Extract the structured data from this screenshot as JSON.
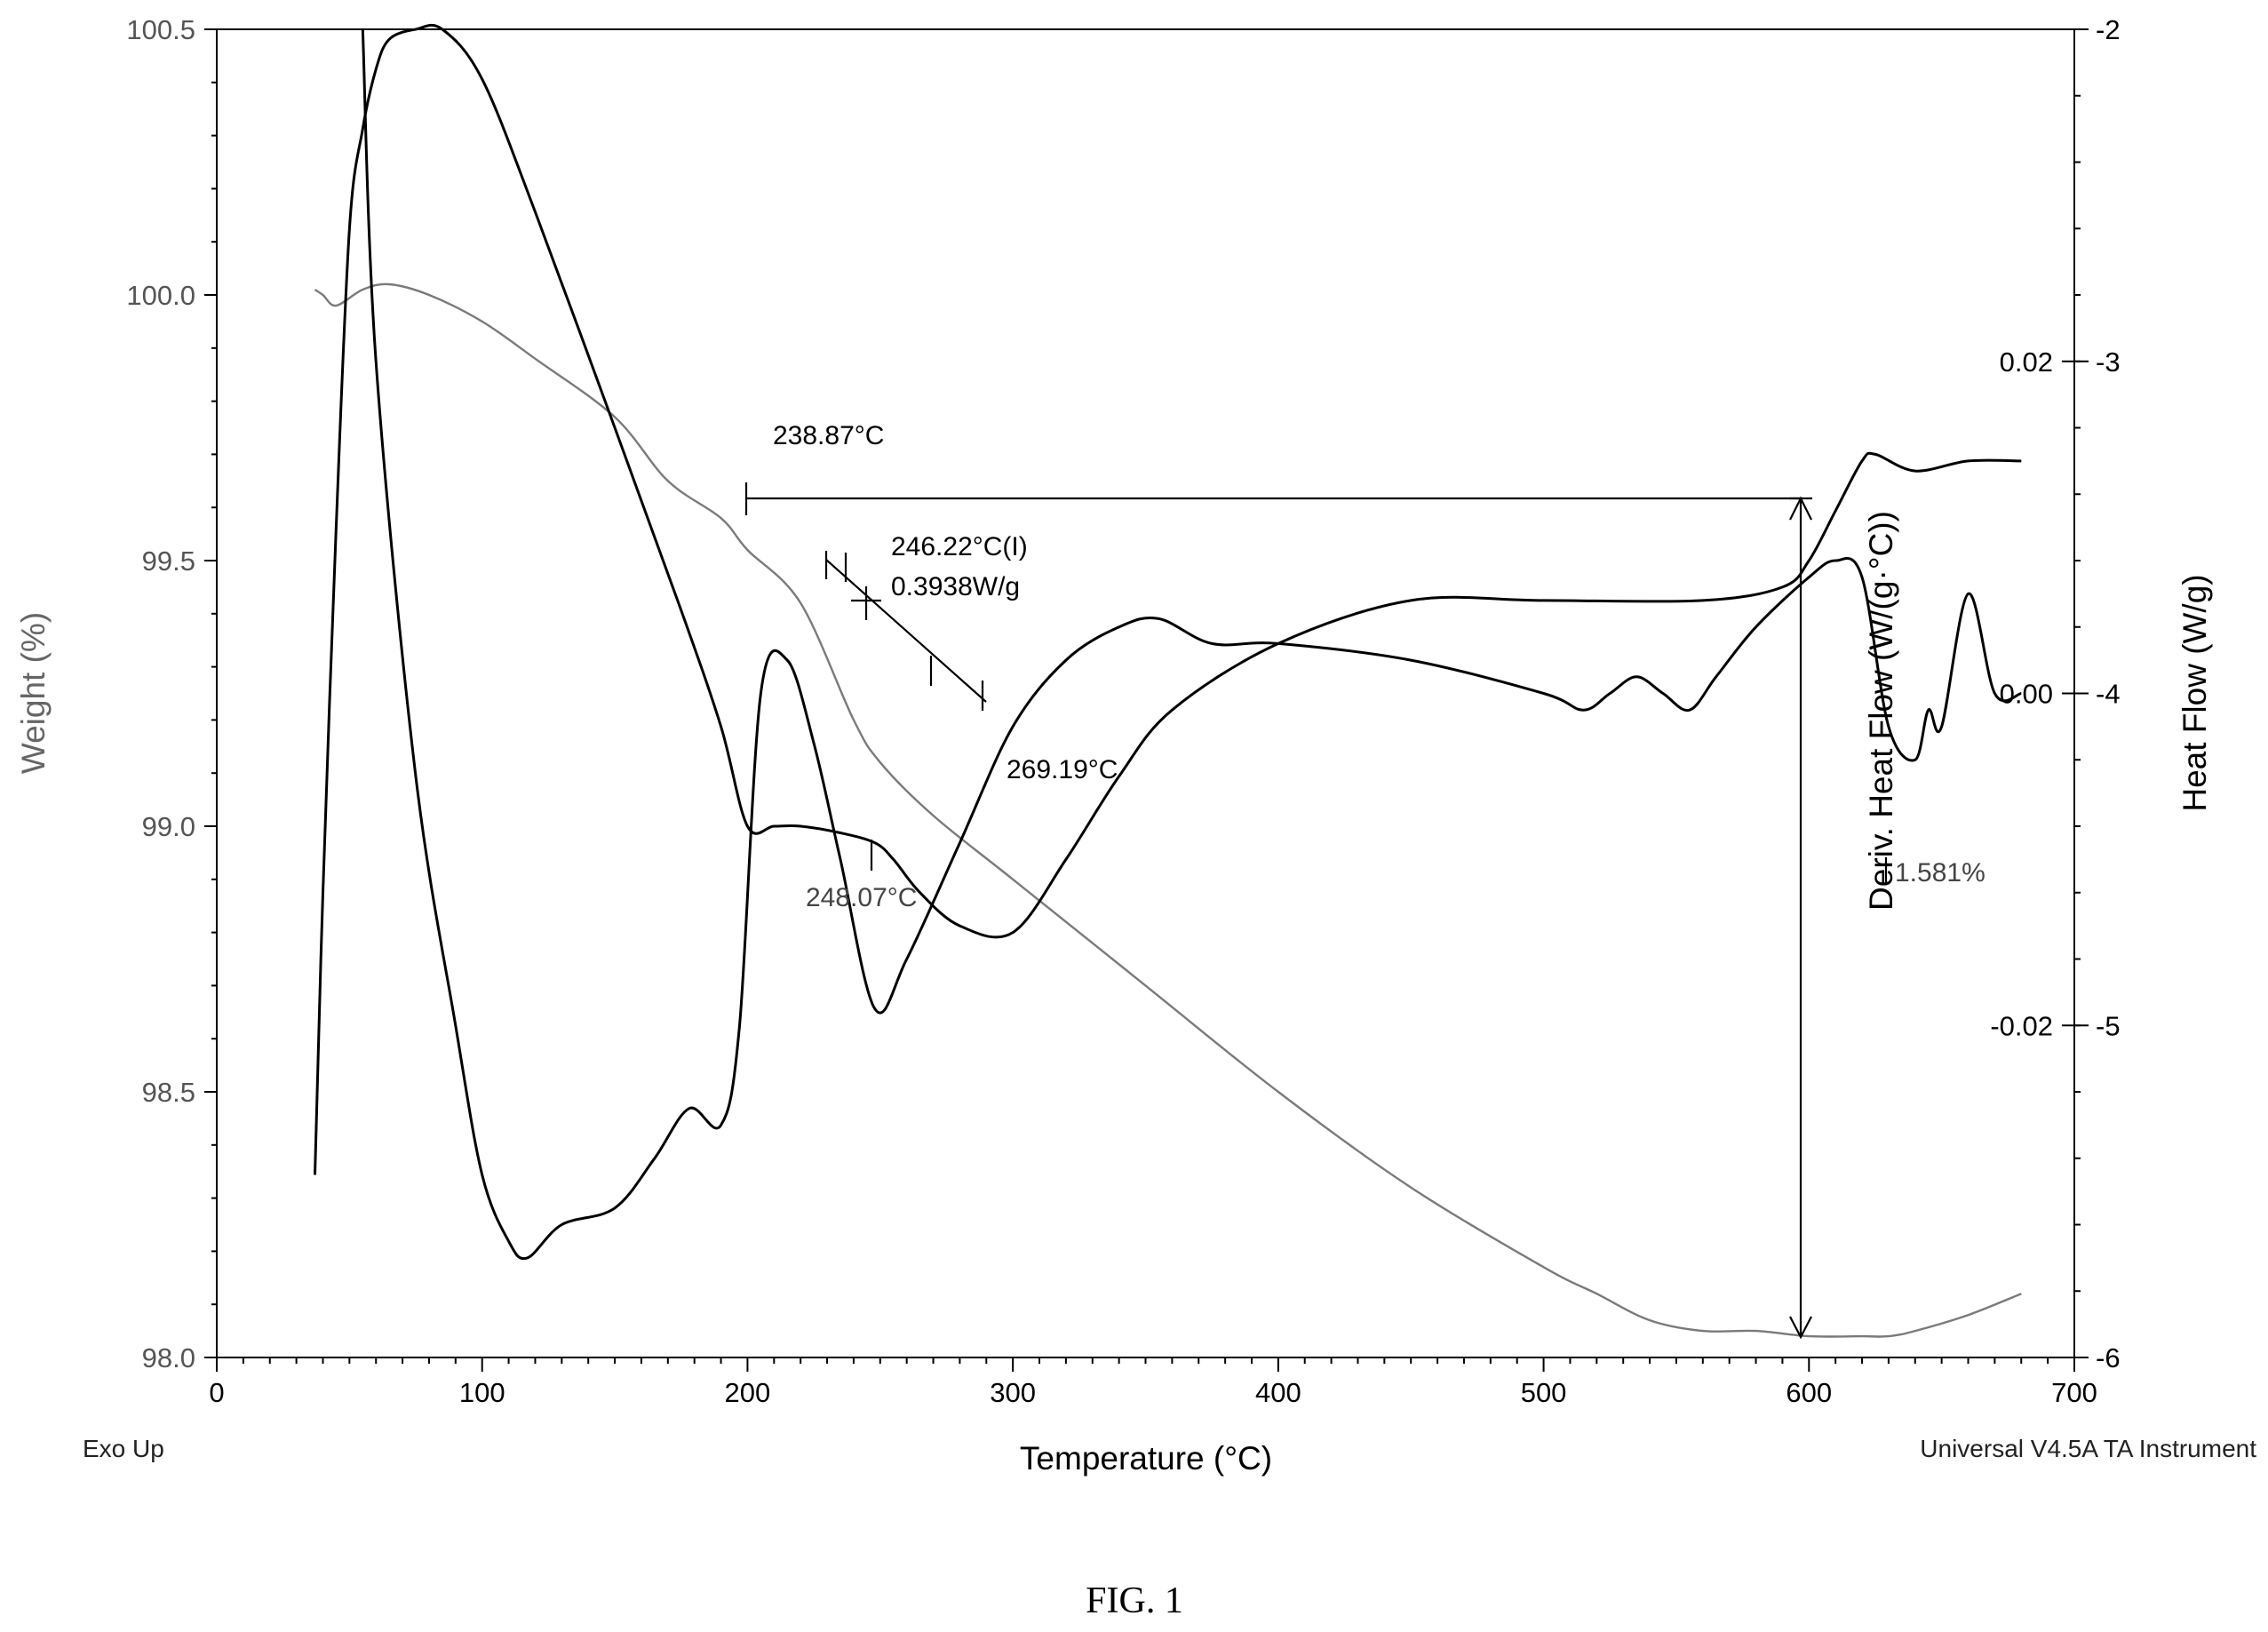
{
  "chart_data": {
    "type": "line",
    "xlabel": "Temperature (°C)",
    "x_range": [
      0,
      700
    ],
    "x_ticks": [
      "0",
      "100",
      "200",
      "300",
      "400",
      "500",
      "600",
      "700"
    ],
    "y_left": {
      "label": "Weight (%)",
      "range": [
        98.0,
        100.5
      ],
      "ticks": [
        "98.0",
        "98.5",
        "99.0",
        "99.5",
        "100.0",
        "100.5"
      ]
    },
    "y_right_inner": {
      "label": "Deriv. Heat Flow (W/(g·°C))",
      "range": [
        -0.04,
        0.04
      ],
      "ticks": [
        "0.02",
        "0.00",
        "-0.02"
      ]
    },
    "y_right_outer": {
      "label": "Heat Flow (W/g)",
      "range": [
        -6,
        -2
      ],
      "ticks": [
        "-2",
        "-3",
        "-4",
        "-5",
        "-6"
      ]
    },
    "series": [
      {
        "axis": "weight",
        "x": [
          37,
          40,
          45,
          55,
          65,
          80,
          100,
          120,
          150,
          170,
          190,
          200,
          220,
          240,
          250,
          270,
          300,
          350,
          400,
          450,
          500,
          520,
          540,
          560,
          580,
          600,
          620,
          630,
          640,
          660,
          680
        ],
        "y": [
          100.01,
          100.0,
          99.98,
          100.01,
          100.02,
          100.0,
          99.95,
          99.88,
          99.77,
          99.65,
          99.58,
          99.52,
          99.42,
          99.2,
          99.12,
          99.02,
          98.9,
          98.7,
          98.5,
          98.32,
          98.17,
          98.12,
          98.07,
          98.05,
          98.05,
          98.04,
          98.04,
          98.04,
          98.05,
          98.08,
          98.12
        ]
      },
      {
        "axis": "heat_flow",
        "x": [
          37,
          40,
          45,
          50,
          55,
          60,
          65,
          75,
          85,
          100,
          120,
          150,
          175,
          190,
          200,
          210,
          220,
          235,
          248,
          255,
          265,
          280,
          300,
          320,
          340,
          360,
          400,
          450,
          500,
          560,
          590,
          600,
          610,
          620,
          625,
          640,
          660,
          680
        ],
        "y": [
          -5.45,
          -4.6,
          -3.5,
          -2.6,
          -2.3,
          -2.12,
          -2.03,
          -1.98,
          -2.0,
          -2.15,
          -2.55,
          -3.2,
          -3.75,
          -4.1,
          -4.4,
          -4.4,
          -4.4,
          -4.42,
          -4.45,
          -4.5,
          -4.6,
          -4.7,
          -4.72,
          -4.5,
          -4.25,
          -4.05,
          -3.85,
          -3.72,
          -3.72,
          -3.72,
          -3.68,
          -3.6,
          -3.45,
          -3.3,
          -3.28,
          -3.33,
          -3.3,
          -3.3
        ]
      },
      {
        "axis": "deriv_heat_flow",
        "x": [
          55,
          60,
          75,
          90,
          100,
          110,
          117,
          130,
          150,
          165,
          178,
          190,
          197,
          205,
          215,
          225,
          235,
          248,
          260,
          280,
          300,
          320,
          340,
          355,
          375,
          400,
          450,
          500,
          515,
          525,
          535,
          545,
          555,
          565,
          580,
          600,
          610,
          620,
          630,
          640,
          645,
          650,
          660,
          670,
          680
        ],
        "y": [
          0.04,
          0.02,
          -0.005,
          -0.02,
          -0.029,
          -0.033,
          -0.034,
          -0.032,
          -0.031,
          -0.028,
          -0.025,
          -0.026,
          -0.02,
          -0.0,
          0.002,
          -0.003,
          -0.01,
          -0.019,
          -0.016,
          -0.009,
          -0.002,
          0.002,
          0.004,
          0.0045,
          0.003,
          0.003,
          0.002,
          0.0,
          -0.001,
          0.0,
          0.001,
          0.0,
          -0.001,
          0.001,
          0.004,
          0.007,
          0.008,
          0.007,
          -0.002,
          -0.004,
          -0.001,
          -0.002,
          0.006,
          0.0,
          0.0
        ]
      }
    ],
    "annotations": [
      "238.87°C",
      "246.22°C(I)",
      "0.3938W/g",
      "269.19°C",
      "248.07°C",
      "1.581%"
    ],
    "grid": false,
    "legend": "none"
  },
  "labels": {
    "a238": "238.87°C",
    "a246": "246.22°C(I)",
    "a3938": "0.3938W/g",
    "a269": "269.19°C",
    "a248": "248.07°C",
    "a1581": "1.581%"
  },
  "footer": {
    "left": "Exo Up",
    "right": "Universal V4.5A TA Instrument"
  },
  "caption": "FIG. 1"
}
